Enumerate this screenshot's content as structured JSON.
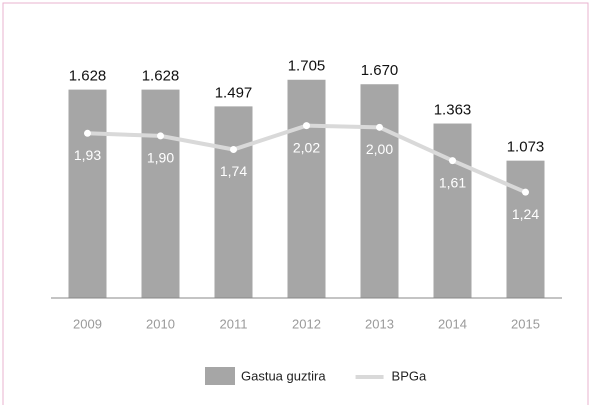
{
  "chart_data": {
    "type": "bar",
    "categories": [
      "2009",
      "2010",
      "2011",
      "2012",
      "2013",
      "2014",
      "2015"
    ],
    "series": [
      {
        "name": "Gastua guztira",
        "type": "bar",
        "color": "#a6a6a6",
        "values": [
          1628,
          1628,
          1497,
          1705,
          1670,
          1363,
          1073
        ],
        "value_labels": [
          "1.628",
          "1.628",
          "1.497",
          "1.705",
          "1.670",
          "1.363",
          "1.073"
        ]
      },
      {
        "name": "BPGa",
        "type": "line",
        "axis": "y2",
        "color": "#d9d9d9",
        "values": [
          1.93,
          1.9,
          1.74,
          2.02,
          2.0,
          1.61,
          1.24
        ],
        "value_labels": [
          "1,93",
          "1,90",
          "1,74",
          "2,02",
          "2,00",
          "1,61",
          "1,24"
        ]
      }
    ],
    "ylim": [
      0,
      2000
    ],
    "y2lim": [
      0,
      3
    ],
    "legend": "bottom"
  }
}
